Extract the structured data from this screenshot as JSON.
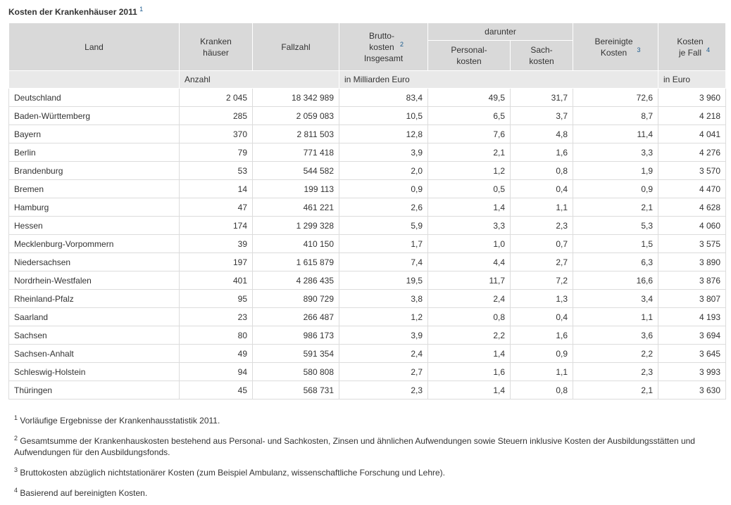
{
  "title": "Kosten der Krankenhäuser 2011",
  "title_note": "1",
  "headers": {
    "land": "Land",
    "krankenhaeuser": "Kranken häuser",
    "fallzahl": "Fallzahl",
    "brutto": "Brutto- kosten",
    "brutto_note": "2",
    "brutto_sub": "Insgesamt",
    "darunter": "darunter",
    "personal": "Personal- kosten",
    "sach": "Sach- kosten",
    "bereinigte": "Bereinigte Kosten",
    "bereinigte_note": "3",
    "kosten_fall": "Kosten je Fall",
    "kosten_fall_note": "4"
  },
  "units": {
    "anzahl": "Anzahl",
    "mrd": "in Milliarden Euro",
    "euro": "in Euro"
  },
  "rows": [
    [
      "Deutschland",
      "2 045",
      "18 342 989",
      "83,4",
      "49,5",
      "31,7",
      "72,6",
      "3 960"
    ],
    [
      "Baden-Württemberg",
      "285",
      "2 059 083",
      "10,5",
      "6,5",
      "3,7",
      "8,7",
      "4 218"
    ],
    [
      "Bayern",
      "370",
      "2 811 503",
      "12,8",
      "7,6",
      "4,8",
      "11,4",
      "4 041"
    ],
    [
      "Berlin",
      "79",
      "771 418",
      "3,9",
      "2,1",
      "1,6",
      "3,3",
      "4 276"
    ],
    [
      "Brandenburg",
      "53",
      "544 582",
      "2,0",
      "1,2",
      "0,8",
      "1,9",
      "3 570"
    ],
    [
      "Bremen",
      "14",
      "199 113",
      "0,9",
      "0,5",
      "0,4",
      "0,9",
      "4 470"
    ],
    [
      "Hamburg",
      "47",
      "461 221",
      "2,6",
      "1,4",
      "1,1",
      "2,1",
      "4 628"
    ],
    [
      "Hessen",
      "174",
      "1 299 328",
      "5,9",
      "3,3",
      "2,3",
      "5,3",
      "4 060"
    ],
    [
      "Mecklenburg-Vorpommern",
      "39",
      "410 150",
      "1,7",
      "1,0",
      "0,7",
      "1,5",
      "3 575"
    ],
    [
      "Niedersachsen",
      "197",
      "1 615 879",
      "7,4",
      "4,4",
      "2,7",
      "6,3",
      "3 890"
    ],
    [
      "Nordrhein-Westfalen",
      "401",
      "4 286 435",
      "19,5",
      "11,7",
      "7,2",
      "16,6",
      "3 876"
    ],
    [
      "Rheinland-Pfalz",
      "95",
      "890 729",
      "3,8",
      "2,4",
      "1,3",
      "3,4",
      "3 807"
    ],
    [
      "Saarland",
      "23",
      "266 487",
      "1,2",
      "0,8",
      "0,4",
      "1,1",
      "4 193"
    ],
    [
      "Sachsen",
      "80",
      "986 173",
      "3,9",
      "2,2",
      "1,6",
      "3,6",
      "3 694"
    ],
    [
      "Sachsen-Anhalt",
      "49",
      "591 354",
      "2,4",
      "1,4",
      "0,9",
      "2,2",
      "3 645"
    ],
    [
      "Schleswig-Holstein",
      "94",
      "580 808",
      "2,7",
      "1,6",
      "1,1",
      "2,3",
      "3 993"
    ],
    [
      "Thüringen",
      "45",
      "568 731",
      "2,3",
      "1,4",
      "0,8",
      "2,1",
      "3 630"
    ]
  ],
  "footnotes": [
    {
      "num": "1",
      "text": "Vorläufige Ergebnisse der Krankenhausstatistik 2011."
    },
    {
      "num": "2",
      "text": "Gesamtsumme der Krankenhauskosten bestehend aus Personal- und Sachkosten, Zinsen und ähnlichen Aufwendungen sowie Steuern inklusive Kosten der Ausbildungsstätten und Aufwendungen für den Ausbildungsfonds."
    },
    {
      "num": "3",
      "text": "Bruttokosten abzüglich nichtstationärer Kosten (zum Beispiel Ambulanz, wissenschaftliche Forschung und Lehre)."
    },
    {
      "num": "4",
      "text": "Basierend auf bereinigten Kosten."
    }
  ]
}
